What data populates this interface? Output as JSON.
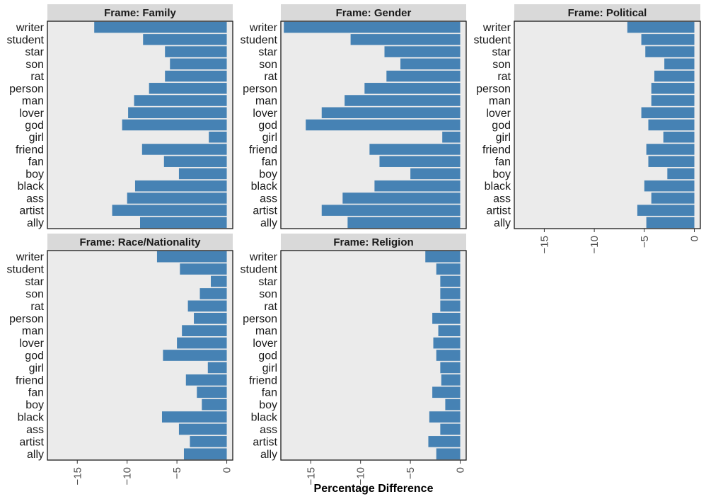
{
  "xlabel": "Percentage Difference",
  "chart_data": {
    "type": "bar",
    "orientation": "horizontal",
    "facet_layout": "3-by-2 grid of facets; x tick labels drawn under the bottom panel of each column",
    "xlabel": "Percentage Difference",
    "xlim": [
      -18,
      0.6
    ],
    "xticks": [
      {
        "value": -15,
        "label": "−15"
      },
      {
        "value": -10,
        "label": "−10"
      },
      {
        "value": -5,
        "label": "−5"
      },
      {
        "value": 0,
        "label": "0"
      }
    ],
    "categories": [
      "writer",
      "student",
      "star",
      "son",
      "rat",
      "person",
      "man",
      "lover",
      "god",
      "girl",
      "friend",
      "fan",
      "boy",
      "black",
      "ass",
      "artist",
      "ally"
    ],
    "bar_color": "#4682b4",
    "panel_background": "#ebebeb",
    "strip_background": "#d9d9d9",
    "grid": false,
    "facets": [
      {
        "title": "Frame: Family",
        "values": [
          -13.3,
          -8.4,
          -6.2,
          -5.7,
          -6.2,
          -7.8,
          -9.3,
          -9.9,
          -10.5,
          -1.8,
          -8.5,
          -6.3,
          -4.8,
          -9.2,
          -10.0,
          -11.5,
          -8.7
        ]
      },
      {
        "title": "Frame: Gender",
        "values": [
          -17.7,
          -11.0,
          -7.6,
          -6.0,
          -7.4,
          -9.6,
          -11.6,
          -13.9,
          -15.5,
          -1.8,
          -9.1,
          -8.1,
          -5.0,
          -8.6,
          -11.8,
          -13.9,
          -11.3
        ]
      },
      {
        "title": "Frame: Political",
        "values": [
          -6.7,
          -5.3,
          -4.9,
          -3.0,
          -4.0,
          -4.3,
          -4.3,
          -5.3,
          -4.6,
          -3.1,
          -4.8,
          -4.6,
          -2.7,
          -5.0,
          -4.3,
          -5.7,
          -4.8
        ]
      },
      {
        "title": "Frame: Race/Nationality",
        "values": [
          -7.0,
          -4.7,
          -1.6,
          -2.7,
          -3.9,
          -3.3,
          -4.5,
          -5.0,
          -6.4,
          -1.9,
          -4.1,
          -3.0,
          -2.5,
          -6.5,
          -4.8,
          -3.7,
          -4.3
        ]
      },
      {
        "title": "Frame: Religion",
        "values": [
          -3.5,
          -2.4,
          -2.0,
          -2.0,
          -2.0,
          -2.8,
          -2.2,
          -2.7,
          -2.4,
          -2.0,
          -1.9,
          -2.8,
          -1.5,
          -3.1,
          -2.0,
          -3.2,
          -2.4
        ]
      }
    ]
  }
}
